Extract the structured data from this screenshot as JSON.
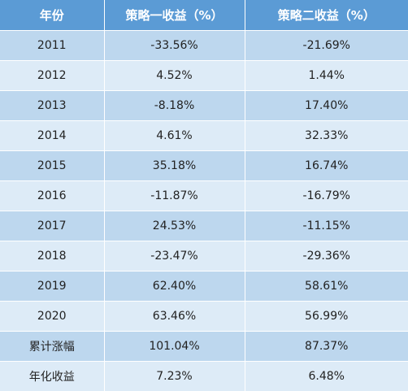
{
  "table": {
    "headers": [
      "年份",
      "策略一收益（%）",
      "策略二收益（%）"
    ],
    "rows": [
      [
        "2011",
        "-33.56%",
        "-21.69%"
      ],
      [
        "2012",
        "4.52%",
        "1.44%"
      ],
      [
        "2013",
        "-8.18%",
        "17.40%"
      ],
      [
        "2014",
        "4.61%",
        "32.33%"
      ],
      [
        "2015",
        "35.18%",
        "16.74%"
      ],
      [
        "2016",
        "-11.87%",
        "-16.79%"
      ],
      [
        "2017",
        "24.53%",
        "-11.15%"
      ],
      [
        "2018",
        "-23.47%",
        "-29.36%"
      ],
      [
        "2019",
        "62.40%",
        "58.61%"
      ],
      [
        "2020",
        "63.46%",
        "56.99%"
      ],
      [
        "累计涨幅",
        "101.04%",
        "87.37%"
      ],
      [
        "年化收益",
        "7.23%",
        "6.48%"
      ]
    ]
  },
  "colors": {
    "header_bg": "#5b9bd5",
    "row_dark": "#bdd7ee",
    "row_light": "#ddebf7"
  }
}
